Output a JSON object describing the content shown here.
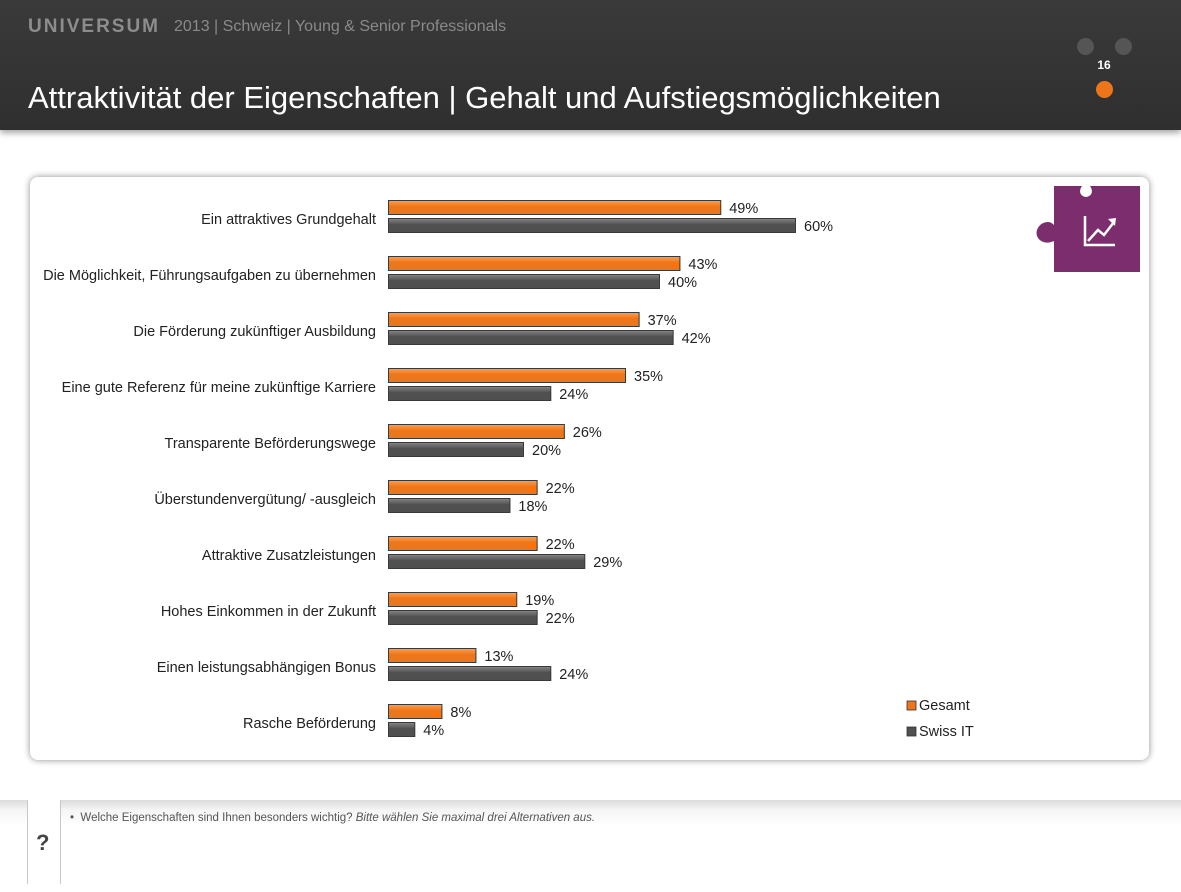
{
  "header": {
    "brand": "UNIVERSUM",
    "subtitle": "2013 | Schweiz | Young & Senior Professionals",
    "title": "Attraktivität der Eigenschaften | Gehalt und Aufstiegsmöglichkeiten",
    "page_number": "16"
  },
  "colors": {
    "gesamt": "#ee7518",
    "swiss_it": "#505050",
    "accent_purple": "#7b2d6e"
  },
  "icon": "growth-chart-puzzle-icon",
  "chart_data": {
    "type": "bar",
    "orientation": "horizontal",
    "categories": [
      "Ein attraktives Grundgehalt",
      "Die Möglichkeit, Führungsaufgaben zu übernehmen",
      "Die Förderung zukünftiger Ausbildung",
      "Eine gute Referenz für meine zukünftige Karriere",
      "Transparente Beförderungswege",
      "Überstundenvergütung/ -ausgleich",
      "Attraktive Zusatzleistungen",
      "Hohes Einkommen in der Zukunft",
      "Einen leistungsabhängigen Bonus",
      "Rasche Beförderung"
    ],
    "series": [
      {
        "name": "Gesamt",
        "values": [
          49,
          43,
          37,
          35,
          26,
          22,
          22,
          19,
          13,
          8
        ]
      },
      {
        "name": "Swiss IT",
        "values": [
          60,
          40,
          42,
          24,
          20,
          18,
          29,
          22,
          24,
          4
        ]
      }
    ],
    "value_suffix": "%",
    "xlim": [
      0,
      100
    ],
    "grid": false,
    "legend_position": "bottom-right"
  },
  "footer": {
    "question_mark": "?",
    "question": "Welche Eigenschaften sind Ihnen besonders wichtig?",
    "instruction": "Bitte wählen Sie maximal drei Alternativen aus."
  }
}
